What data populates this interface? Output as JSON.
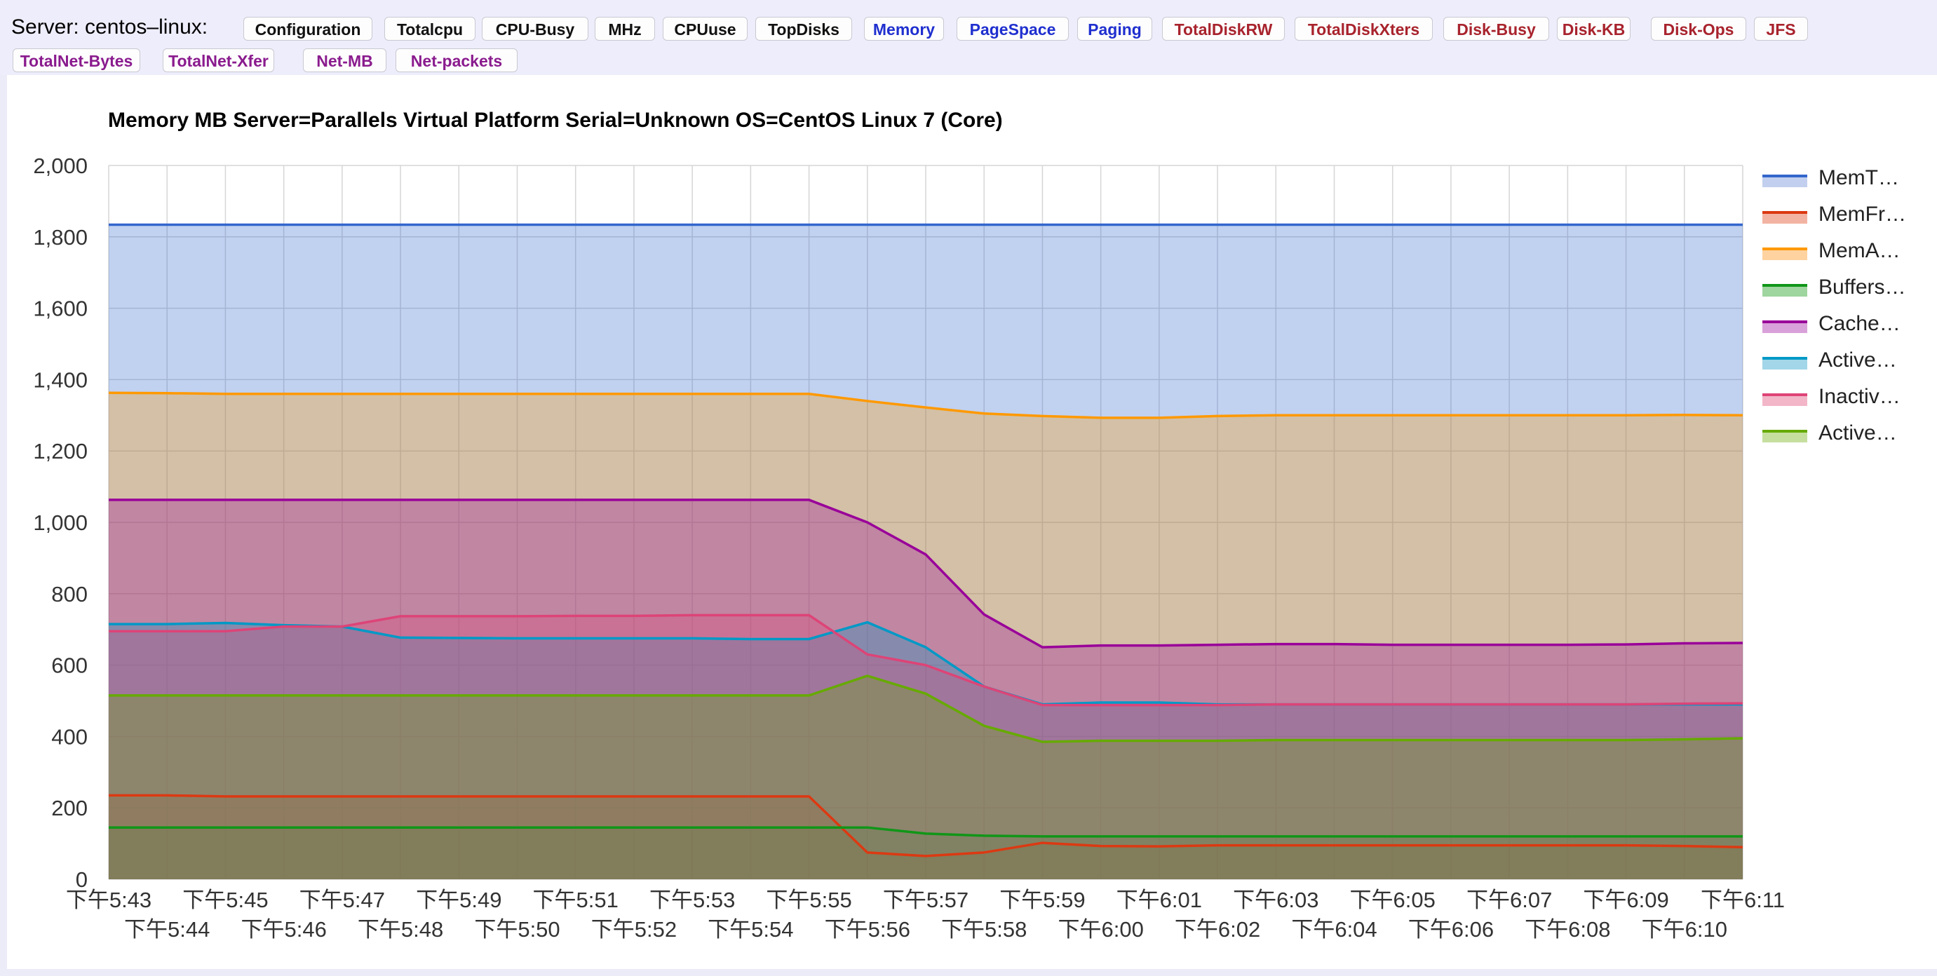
{
  "header": {
    "server_label": "Server: centos–linux:",
    "buttons": [
      {
        "label": "Configuration",
        "color": "#111111"
      },
      {
        "label": "Totalcpu",
        "color": "#111111"
      },
      {
        "label": "CPU-Busy",
        "color": "#111111"
      },
      {
        "label": "MHz",
        "color": "#111111"
      },
      {
        "label": "CPUuse",
        "color": "#111111"
      },
      {
        "label": "TopDisks",
        "color": "#111111"
      },
      {
        "label": "Memory",
        "color": "#1f2fcf"
      },
      {
        "label": "PageSpace",
        "color": "#1f2fcf"
      },
      {
        "label": "Paging",
        "color": "#1f2fcf"
      },
      {
        "label": "TotalDiskRW",
        "color": "#a8232d"
      },
      {
        "label": "TotalDiskXters",
        "color": "#a8232d"
      },
      {
        "label": "Disk-Busy",
        "color": "#a8232d"
      },
      {
        "label": "Disk-KB",
        "color": "#a8232d"
      },
      {
        "label": "Disk-Ops",
        "color": "#a8232d"
      },
      {
        "label": "JFS",
        "color": "#a8232d"
      },
      {
        "label": "TotalNet-Bytes",
        "color": "#8a1b8e"
      },
      {
        "label": "TotalNet-Xfer",
        "color": "#8a1b8e"
      },
      {
        "label": "Net-MB",
        "color": "#8a1b8e"
      },
      {
        "label": "Net-packets",
        "color": "#8a1b8e"
      }
    ]
  },
  "chart_data": {
    "type": "area",
    "title": "Memory MB Server=Parallels Virtual Platform Serial=Unknown OS=CentOS Linux 7 (Core)",
    "xlabel": "",
    "ylabel": "",
    "ylim": [
      0,
      2000
    ],
    "yticks": [
      "0",
      "200",
      "400",
      "600",
      "800",
      "1,000",
      "1,200",
      "1,400",
      "1,600",
      "1,800",
      "2,000"
    ],
    "grid": true,
    "legend_position": "right",
    "categories": [
      "下午5:43",
      "下午5:44",
      "下午5:45",
      "下午5:46",
      "下午5:47",
      "下午5:48",
      "下午5:49",
      "下午5:50",
      "下午5:51",
      "下午5:52",
      "下午5:53",
      "下午5:54",
      "下午5:55",
      "下午5:56",
      "下午5:57",
      "下午5:58",
      "下午5:59",
      "下午6:00",
      "下午6:01",
      "下午6:02",
      "下午6:03",
      "下午6:04",
      "下午6:05",
      "下午6:06",
      "下午6:07",
      "下午6:08",
      "下午6:09",
      "下午6:10",
      "下午6:11"
    ],
    "series": [
      {
        "name": "MemT…",
        "color": "#3366cc",
        "fill": "#c2cfee",
        "values": [
          1834,
          1834,
          1834,
          1834,
          1834,
          1834,
          1834,
          1834,
          1834,
          1834,
          1834,
          1834,
          1834,
          1834,
          1834,
          1834,
          1834,
          1834,
          1834,
          1834,
          1834,
          1834,
          1834,
          1834,
          1834,
          1834,
          1834,
          1834,
          1834
        ]
      },
      {
        "name": "MemFr…",
        "color": "#dc3912",
        "fill": "#f3b3a2",
        "values": [
          235,
          235,
          232,
          232,
          232,
          232,
          232,
          232,
          232,
          232,
          232,
          232,
          232,
          75,
          65,
          75,
          102,
          93,
          92,
          95,
          95,
          95,
          95,
          95,
          95,
          95,
          95,
          93,
          90
        ]
      },
      {
        "name": "MemA…",
        "color": "#ff9900",
        "fill": "#fed3a0",
        "values": [
          1363,
          1362,
          1360,
          1360,
          1360,
          1360,
          1360,
          1360,
          1360,
          1360,
          1360,
          1360,
          1360,
          1340,
          1322,
          1305,
          1298,
          1293,
          1293,
          1298,
          1300,
          1300,
          1300,
          1300,
          1300,
          1300,
          1300,
          1301,
          1300
        ]
      },
      {
        "name": "Buffers…",
        "color": "#109618",
        "fill": "#9fd59f",
        "values": [
          145,
          145,
          145,
          145,
          145,
          145,
          145,
          145,
          145,
          145,
          145,
          145,
          145,
          145,
          128,
          122,
          120,
          120,
          120,
          120,
          120,
          120,
          120,
          120,
          120,
          120,
          120,
          120,
          120
        ]
      },
      {
        "name": "Cache…",
        "color": "#990099",
        "fill": "#d9a1d9",
        "values": [
          1063,
          1063,
          1063,
          1063,
          1063,
          1063,
          1063,
          1063,
          1063,
          1063,
          1063,
          1063,
          1063,
          1000,
          910,
          742,
          650,
          655,
          655,
          657,
          659,
          659,
          657,
          657,
          657,
          657,
          658,
          661,
          662
        ]
      },
      {
        "name": "Active…",
        "color": "#0099c6",
        "fill": "#a3d6e8",
        "values": [
          715,
          715,
          718,
          712,
          708,
          677,
          676,
          675,
          675,
          675,
          675,
          673,
          673,
          720,
          650,
          540,
          490,
          495,
          495,
          490,
          490,
          490,
          490,
          490,
          490,
          490,
          490,
          490,
          490
        ]
      },
      {
        "name": "Inactiv…",
        "color": "#dd4477",
        "fill": "#f2b6c8",
        "values": [
          695,
          695,
          695,
          708,
          708,
          737,
          737,
          737,
          738,
          738,
          740,
          740,
          740,
          630,
          600,
          540,
          488,
          488,
          488,
          488,
          490,
          490,
          490,
          490,
          490,
          490,
          490,
          492,
          493
        ]
      },
      {
        "name": "Active…",
        "color": "#66aa00",
        "fill": "#c6df9f",
        "values": [
          515,
          515,
          515,
          515,
          515,
          515,
          515,
          515,
          515,
          515,
          515,
          515,
          515,
          570,
          520,
          430,
          385,
          388,
          388,
          388,
          390,
          390,
          390,
          390,
          390,
          390,
          390,
          392,
          395
        ]
      }
    ]
  }
}
